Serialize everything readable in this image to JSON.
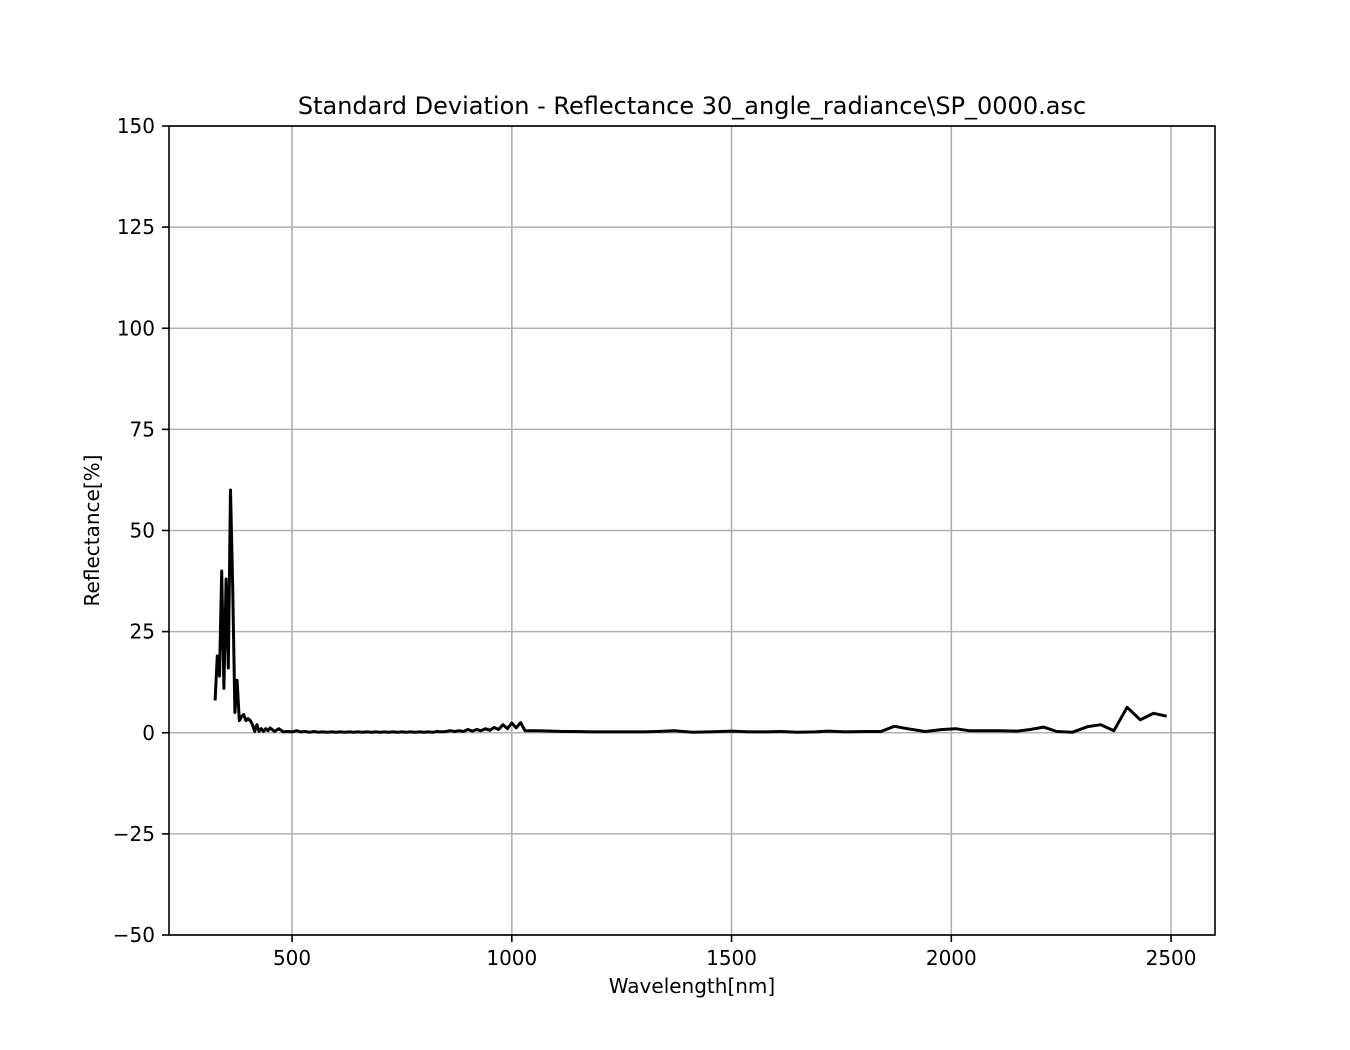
{
  "chart_data": {
    "type": "line",
    "title": "Standard Deviation - Reflectance 30_angle_radiance\\SP_0000.asc",
    "xlabel": "Wavelength[nm]",
    "ylabel": "Reflectance[%]",
    "xlim": [
      220,
      2600
    ],
    "ylim": [
      -50,
      150
    ],
    "xticks": [
      500,
      1000,
      1500,
      2000,
      2500
    ],
    "xtick_labels": [
      "500",
      "1000",
      "1500",
      "2000",
      "2500"
    ],
    "yticks": [
      -50,
      -25,
      0,
      25,
      50,
      75,
      100,
      125,
      150
    ],
    "ytick_labels": [
      "−50",
      "−25",
      "0",
      "25",
      "50",
      "75",
      "100",
      "125",
      "150"
    ],
    "grid": true,
    "series": [
      {
        "color": "#000000",
        "x": [
          325,
          330,
          335,
          340,
          345,
          350,
          355,
          360,
          365,
          370,
          375,
          380,
          385,
          390,
          395,
          400,
          405,
          410,
          415,
          420,
          425,
          430,
          435,
          440,
          445,
          450,
          460,
          470,
          480,
          490,
          500,
          510,
          520,
          530,
          540,
          550,
          560,
          570,
          580,
          590,
          600,
          610,
          620,
          630,
          640,
          650,
          660,
          670,
          680,
          690,
          700,
          710,
          720,
          730,
          740,
          750,
          760,
          770,
          780,
          790,
          800,
          810,
          820,
          830,
          840,
          850,
          860,
          870,
          880,
          890,
          900,
          910,
          920,
          930,
          940,
          950,
          960,
          970,
          980,
          990,
          1000,
          1010,
          1020,
          1030,
          1060,
          1090,
          1120,
          1150,
          1180,
          1210,
          1240,
          1270,
          1300,
          1330,
          1370,
          1410,
          1450,
          1500,
          1540,
          1580,
          1610,
          1650,
          1690,
          1720,
          1760,
          1800,
          1840,
          1870,
          1900,
          1940,
          1980,
          2010,
          2040,
          2080,
          2110,
          2150,
          2180,
          2210,
          2240,
          2275,
          2310,
          2340,
          2370,
          2400,
          2430,
          2460,
          2490
        ],
        "y": [
          8,
          19,
          14,
          40,
          11,
          38,
          16,
          60,
          36,
          5,
          13,
          3,
          4,
          4.5,
          3,
          3.5,
          3,
          2,
          0.3,
          2,
          0.3,
          1,
          0.3,
          1,
          0.5,
          1.2,
          0.3,
          1,
          0.2,
          0.3,
          0.2,
          0.5,
          0.2,
          0.3,
          0.1,
          0.3,
          0.1,
          0.2,
          0.1,
          0.2,
          0.1,
          0.2,
          0.1,
          0.2,
          0.1,
          0.2,
          0.1,
          0.2,
          0.1,
          0.2,
          0.1,
          0.2,
          0.1,
          0.2,
          0.1,
          0.2,
          0.1,
          0.2,
          0.1,
          0.2,
          0.1,
          0.2,
          0.1,
          0.3,
          0.2,
          0.3,
          0.5,
          0.3,
          0.5,
          0.3,
          0.8,
          0.4,
          0.8,
          0.5,
          1.0,
          0.6,
          1.3,
          0.8,
          2.0,
          1.0,
          2.4,
          1.2,
          2.5,
          0.5,
          0.5,
          0.4,
          0.3,
          0.3,
          0.2,
          0.2,
          0.2,
          0.2,
          0.2,
          0.3,
          0.5,
          0.1,
          0.2,
          0.4,
          0.2,
          0.2,
          0.3,
          0.1,
          0.2,
          0.4,
          0.2,
          0.3,
          0.3,
          1.6,
          1.0,
          0.3,
          0.8,
          1.0,
          0.5,
          0.5,
          0.5,
          0.4,
          0.8,
          1.4,
          0.3,
          0.1,
          1.5,
          2.0,
          0.5,
          6.3,
          3.2,
          4.8,
          4.1
        ]
      }
    ]
  }
}
